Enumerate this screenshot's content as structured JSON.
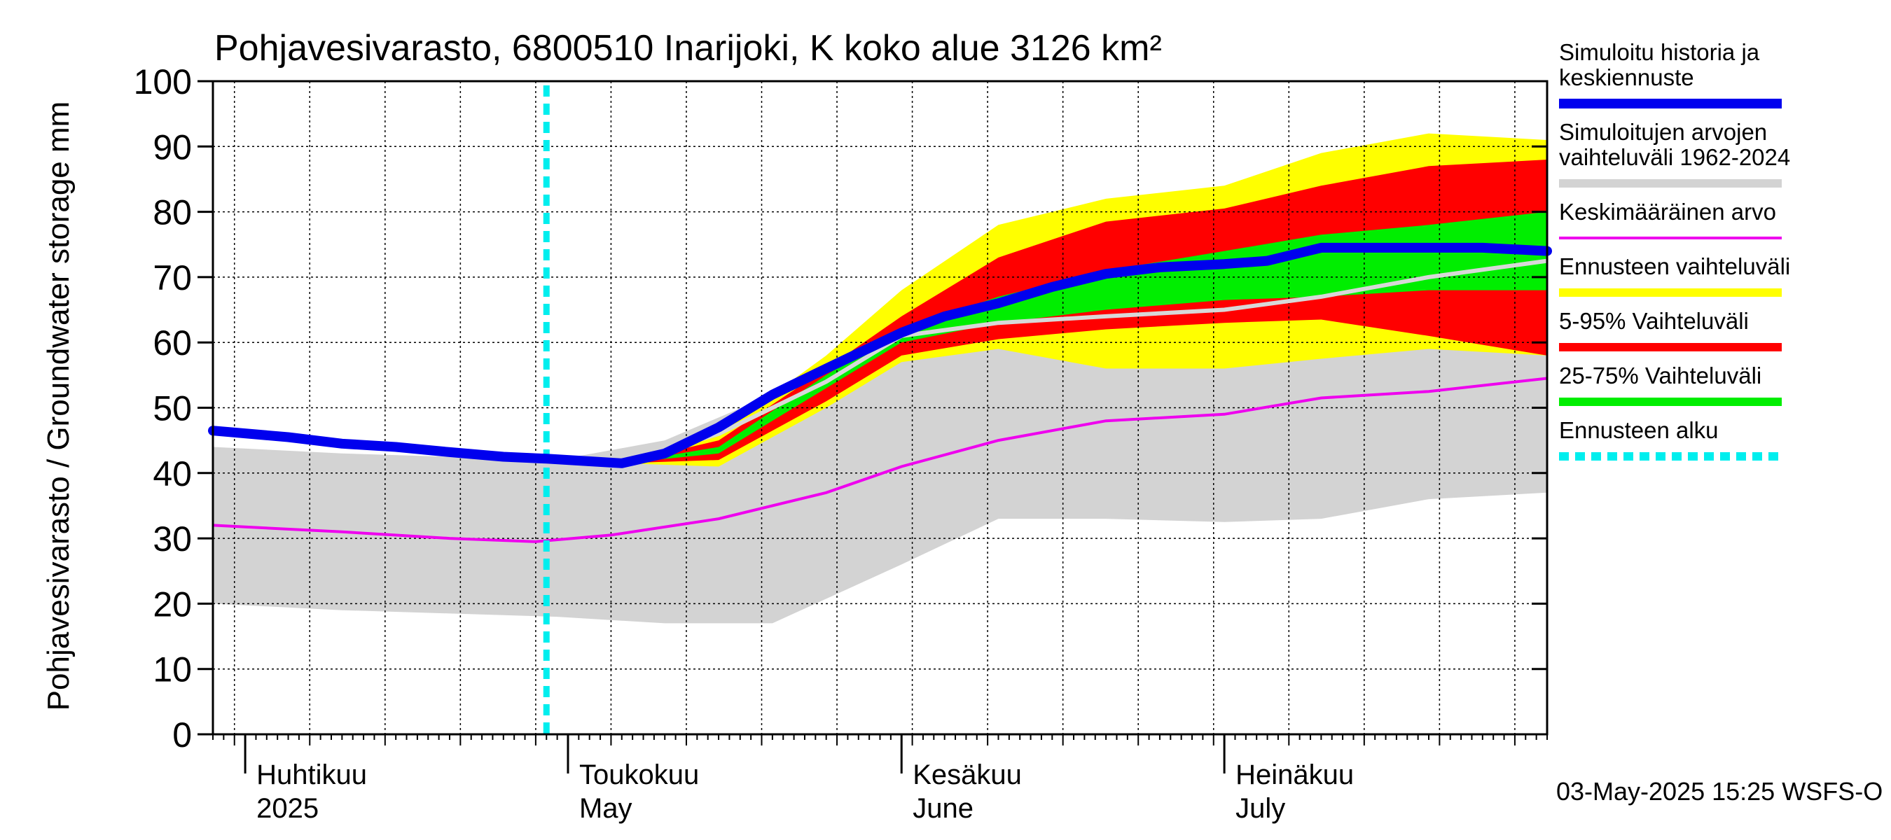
{
  "chart_data": {
    "type": "area",
    "title": "Pohjavesivarasto, 6800510 Inarijoki, K koko alue 3126 km²",
    "ylabel": "Pohjavesivarasto / Groundwater storage   mm",
    "ylim": [
      0,
      100
    ],
    "yticks": [
      0,
      10,
      20,
      30,
      40,
      50,
      60,
      70,
      80,
      90,
      100
    ],
    "xlim": [
      "2025-03-29",
      "2025-07-31"
    ],
    "month_labels": [
      {
        "date": "2025-04-01",
        "fi": "Huhtikuu",
        "en": "2025"
      },
      {
        "date": "2025-05-01",
        "fi": "Toukokuu",
        "en": "May"
      },
      {
        "date": "2025-06-01",
        "fi": "Kesäkuu",
        "en": "June"
      },
      {
        "date": "2025-07-01",
        "fi": "Heinäkuu",
        "en": "July"
      }
    ],
    "forecast_start": "2025-04-29",
    "footer": "03-May-2025 15:25 WSFS-O",
    "colors": {
      "history": "#0000ee",
      "range_1962_2024": "#d3d3d3",
      "mean": "#ee00ee",
      "forecast_range": "#ffff00",
      "p5_95": "#ff0000",
      "p25_75": "#00ee00",
      "forecast_start": "#00eeee",
      "median_line": "#d8d8d8"
    },
    "legend": [
      {
        "key": "history",
        "label": "Simuloitu historia ja keskiennuste"
      },
      {
        "key": "range_1962_2024",
        "label": "Simuloitujen arvojen vaihteluväli 1962-2024"
      },
      {
        "key": "mean",
        "label": "Keskimääräinen arvo"
      },
      {
        "key": "forecast_range",
        "label": "Ennusteen vaihteluväli"
      },
      {
        "key": "p5_95",
        "label": "5-95% Vaihteluväli"
      },
      {
        "key": "p25_75",
        "label": "25-75% Vaihteluväli"
      },
      {
        "key": "forecast_start",
        "label": "Ennusteen alku"
      }
    ],
    "series": {
      "history_range": {
        "x": [
          "2025-03-29",
          "2025-04-10",
          "2025-04-20",
          "2025-04-30",
          "2025-05-10",
          "2025-05-20",
          "2025-06-01",
          "2025-06-10",
          "2025-06-20",
          "2025-07-01",
          "2025-07-10",
          "2025-07-20",
          "2025-07-31"
        ],
        "upper": [
          44,
          43,
          42.5,
          42,
          45,
          52,
          58,
          59,
          58.5,
          58.5,
          59,
          59.5,
          58
        ],
        "lower": [
          20,
          19,
          18.5,
          18,
          17,
          17,
          26,
          33,
          33,
          32.5,
          33,
          36,
          37
        ]
      },
      "mean": {
        "x": [
          "2025-03-29",
          "2025-04-10",
          "2025-04-20",
          "2025-04-28",
          "2025-05-05",
          "2025-05-15",
          "2025-05-25",
          "2025-06-01",
          "2025-06-10",
          "2025-06-20",
          "2025-07-01",
          "2025-07-10",
          "2025-07-20",
          "2025-07-31"
        ],
        "values": [
          32,
          31,
          30,
          29.5,
          30.5,
          33,
          37,
          41,
          45,
          48,
          49,
          51.5,
          52.5,
          54.5
        ]
      },
      "forecast_range": {
        "x": [
          "2025-05-06",
          "2025-05-15",
          "2025-05-25",
          "2025-06-01",
          "2025-06-10",
          "2025-06-20",
          "2025-07-01",
          "2025-07-10",
          "2025-07-20",
          "2025-07-31"
        ],
        "upper": [
          41.5,
          46,
          58,
          68,
          78,
          82,
          84,
          89,
          92,
          91
        ],
        "lower": [
          41.5,
          41,
          50,
          57,
          59,
          56,
          56,
          57.5,
          59,
          58
        ]
      },
      "p5_95": {
        "x": [
          "2025-05-06",
          "2025-05-15",
          "2025-05-25",
          "2025-06-01",
          "2025-06-10",
          "2025-06-20",
          "2025-07-01",
          "2025-07-10",
          "2025-07-20",
          "2025-07-31"
        ],
        "upper": [
          41.5,
          45,
          56,
          64,
          73,
          78.5,
          80.5,
          84,
          87,
          88
        ],
        "lower": [
          41.5,
          42,
          51,
          58,
          60.5,
          62,
          63,
          63.5,
          61,
          58
        ]
      },
      "p25_75": {
        "x": [
          "2025-05-06",
          "2025-05-15",
          "2025-05-25",
          "2025-06-01",
          "2025-06-10",
          "2025-06-20",
          "2025-07-01",
          "2025-07-10",
          "2025-07-20",
          "2025-07-31"
        ],
        "upper": [
          41.5,
          44,
          55,
          62,
          67,
          71,
          74,
          76.5,
          78,
          80
        ],
        "lower": [
          41.5,
          43,
          53,
          60,
          63,
          65,
          66.5,
          67,
          68,
          68
        ]
      },
      "median": {
        "x": [
          "2025-05-06",
          "2025-05-15",
          "2025-05-25",
          "2025-06-01",
          "2025-06-10",
          "2025-06-20",
          "2025-07-01",
          "2025-07-10",
          "2025-07-20",
          "2025-07-31"
        ],
        "values": [
          41.5,
          46,
          54,
          61,
          63,
          64,
          65,
          67,
          70,
          72.5
        ]
      },
      "history": {
        "x": [
          "2025-03-29",
          "2025-04-05",
          "2025-04-10",
          "2025-04-15",
          "2025-04-20",
          "2025-04-25",
          "2025-04-29",
          "2025-05-03",
          "2025-05-06",
          "2025-05-10",
          "2025-05-15",
          "2025-05-20",
          "2025-05-25",
          "2025-06-01",
          "2025-06-05",
          "2025-06-10",
          "2025-06-15",
          "2025-06-20",
          "2025-06-25",
          "2025-07-01",
          "2025-07-05",
          "2025-07-10",
          "2025-07-15",
          "2025-07-20",
          "2025-07-25",
          "2025-07-31"
        ],
        "values": [
          46.5,
          45.5,
          44.5,
          44,
          43.2,
          42.5,
          42.2,
          41.8,
          41.5,
          43,
          47,
          52,
          56,
          61.5,
          64,
          66,
          68.5,
          70.5,
          71.5,
          72,
          72.5,
          74.5,
          74.5,
          74.5,
          74.5,
          74
        ]
      }
    }
  }
}
